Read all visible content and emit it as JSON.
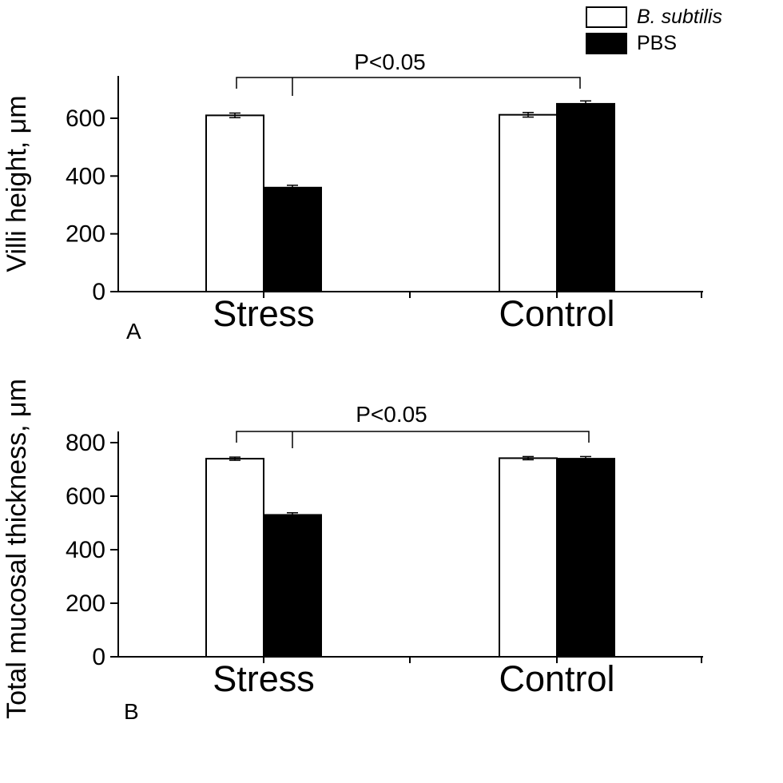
{
  "figure": {
    "background": "#ffffff",
    "foreground": "#000000"
  },
  "legend": {
    "items": [
      {
        "label": "B. subtilis",
        "swatch": "#ffffff",
        "italic": true
      },
      {
        "label": "PBS",
        "swatch": "#000000",
        "italic": false
      }
    ]
  },
  "chart_data": [
    {
      "type": "bar",
      "panel": "A",
      "title": "",
      "xlabel": "",
      "ylabel": "Villi height, μm",
      "categories": [
        "Stress",
        "Control"
      ],
      "series": [
        {
          "name": "B. subtilis",
          "color": "#ffffff",
          "values": [
            610,
            612
          ],
          "errors": [
            8,
            8
          ]
        },
        {
          "name": "PBS",
          "color": "#000000",
          "values": [
            360,
            650
          ],
          "errors": [
            8,
            10
          ]
        }
      ],
      "yticks": [
        0,
        200,
        400,
        600
      ],
      "ylim": [
        0,
        745
      ],
      "grid": false,
      "legend_position": "top-right",
      "annotation": "P<0.05"
    },
    {
      "type": "bar",
      "panel": "B",
      "title": "",
      "xlabel": "",
      "ylabel": "Total mucosal thickness, μm",
      "categories": [
        "Stress",
        "Control"
      ],
      "series": [
        {
          "name": "B. subtilis",
          "color": "#ffffff",
          "values": [
            740,
            742
          ],
          "errors": [
            6,
            6
          ]
        },
        {
          "name": "PBS",
          "color": "#000000",
          "values": [
            530,
            740
          ],
          "errors": [
            8,
            8
          ]
        }
      ],
      "yticks": [
        0,
        200,
        400,
        600,
        800
      ],
      "ylim": [
        0,
        845
      ],
      "grid": false,
      "legend_position": "top-right",
      "annotation": "P<0.05"
    }
  ]
}
